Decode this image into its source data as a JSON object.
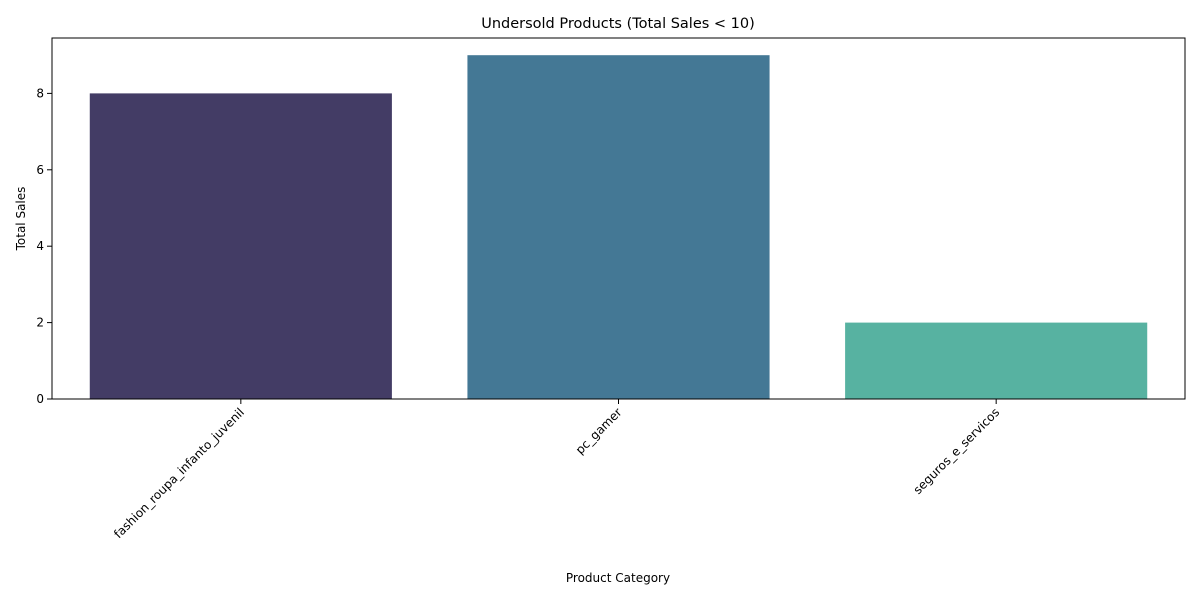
{
  "chart_data": {
    "type": "bar",
    "title": "Undersold Products (Total Sales < 10)",
    "xlabel": "Product Category",
    "ylabel": "Total Sales",
    "categories": [
      "fashion_roupa_infanto_juvenil",
      "pc_gamer",
      "seguros_e_servicos"
    ],
    "values": [
      8,
      9,
      2
    ],
    "colors": [
      "#433c65",
      "#447895",
      "#57b2a1"
    ],
    "ylim": [
      0,
      9.45
    ],
    "yticks": [
      0,
      2,
      4,
      6,
      8
    ],
    "xtick_rotation_deg": 45,
    "grid": false,
    "legend": "none"
  }
}
